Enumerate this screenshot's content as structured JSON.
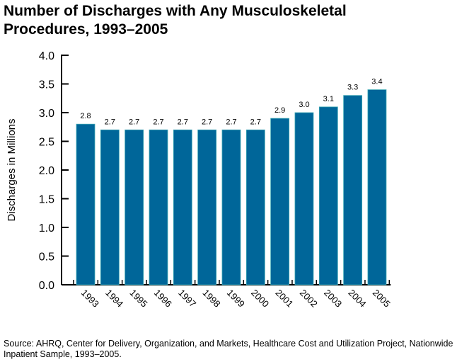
{
  "chart_data": {
    "type": "bar",
    "title": "Number of Discharges with Any Musculoskeletal Procedures, 1993–2005",
    "xlabel": "",
    "ylabel": "Discharges in Millions",
    "categories": [
      "1993",
      "1994",
      "1995",
      "1996",
      "1997",
      "1998",
      "1999",
      "2000",
      "2001",
      "2002",
      "2003",
      "2004",
      "2005"
    ],
    "values": [
      2.8,
      2.7,
      2.7,
      2.7,
      2.7,
      2.7,
      2.7,
      2.7,
      2.9,
      3.0,
      3.1,
      3.3,
      3.4
    ],
    "data_labels": [
      "2.8",
      "2.7",
      "2.7",
      "2.7",
      "2.7",
      "2.7",
      "2.7",
      "2.7",
      "2.9",
      "3.0",
      "3.1",
      "3.3",
      "3.4"
    ],
    "ylim": [
      0,
      4.0
    ],
    "yticks": [
      "0.0",
      "0.5",
      "1.0",
      "1.5",
      "2.0",
      "2.5",
      "3.0",
      "3.5",
      "4.0"
    ],
    "grid": false,
    "legend": "none",
    "bar_color": "#006699",
    "bar_edge_color": "#3fa9b5"
  },
  "source": "Source:  AHRQ, Center for Delivery, Organization, and Markets, Healthcare Cost and Utilization Project, Nationwide Inpatient Sample, 1993–2005."
}
